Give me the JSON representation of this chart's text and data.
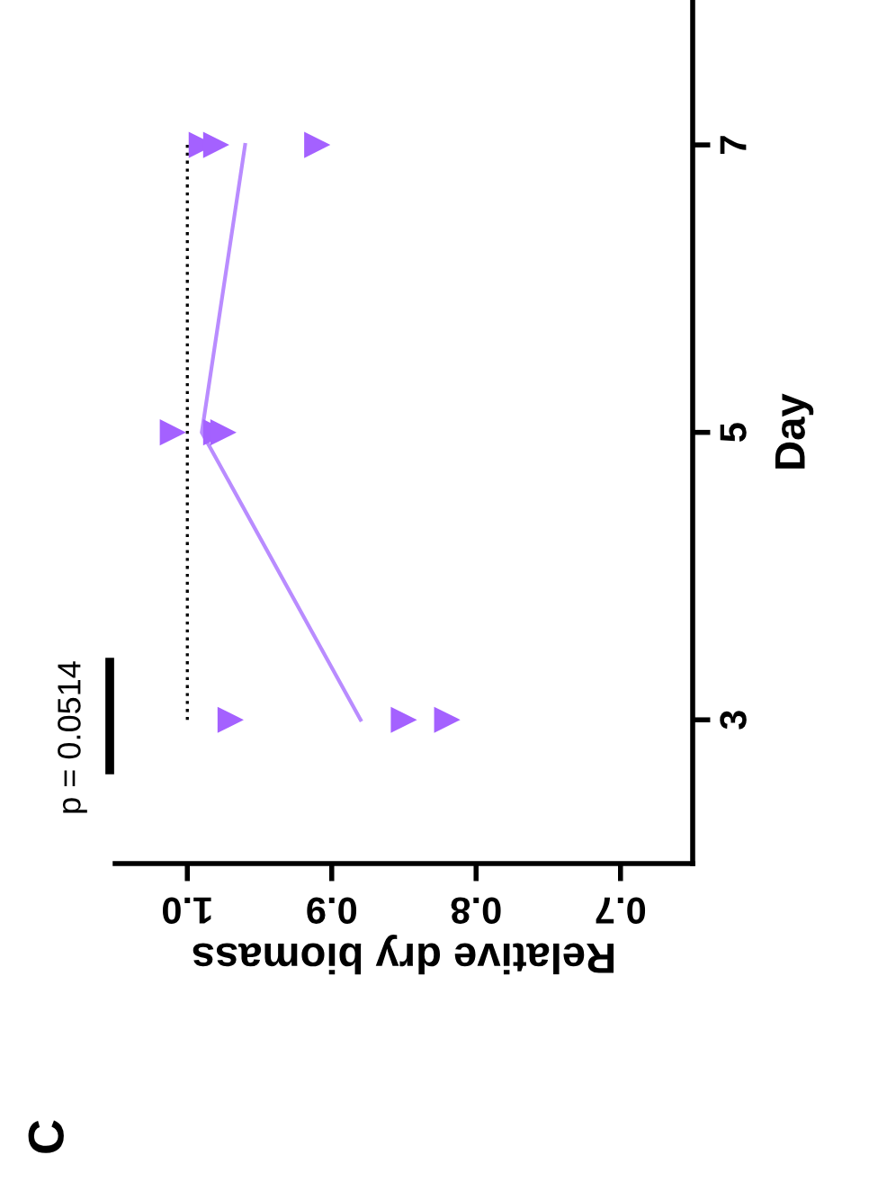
{
  "chart_data": {
    "type": "scatter",
    "xlabel": "Relative dry biomass",
    "ylabel": "Day",
    "xlim": [
      1.05,
      0.65
    ],
    "xticks": [
      {
        "value": 1,
        "label": "1.0"
      },
      0.9,
      0.8,
      0.7
    ],
    "ylim": [
      2,
      8
    ],
    "yticks": [
      3,
      5,
      7
    ],
    "series": [
      {
        "color": "#a461ff",
        "marker": "triangle",
        "x": [
          0.97,
          0.85,
          0.82,
          1.01,
          0.98,
          0.975,
          0.99,
          0.98,
          0.91
        ],
        "values": [
          3,
          3,
          3,
          5,
          5,
          5,
          7,
          7,
          7
        ]
      },
      {
        "type": "line",
        "color": "#b98cff",
        "x": [
          0.88,
          0.99,
          0.96
        ],
        "values": [
          3,
          5,
          7
        ]
      },
      {
        "type": "line",
        "color": "#000000",
        "line_style": "dotted",
        "x": [
          1.0,
          1.0
        ],
        "values": [
          3,
          7
        ]
      }
    ],
    "annotations": [
      "p = 0.0514",
      "C"
    ]
  }
}
